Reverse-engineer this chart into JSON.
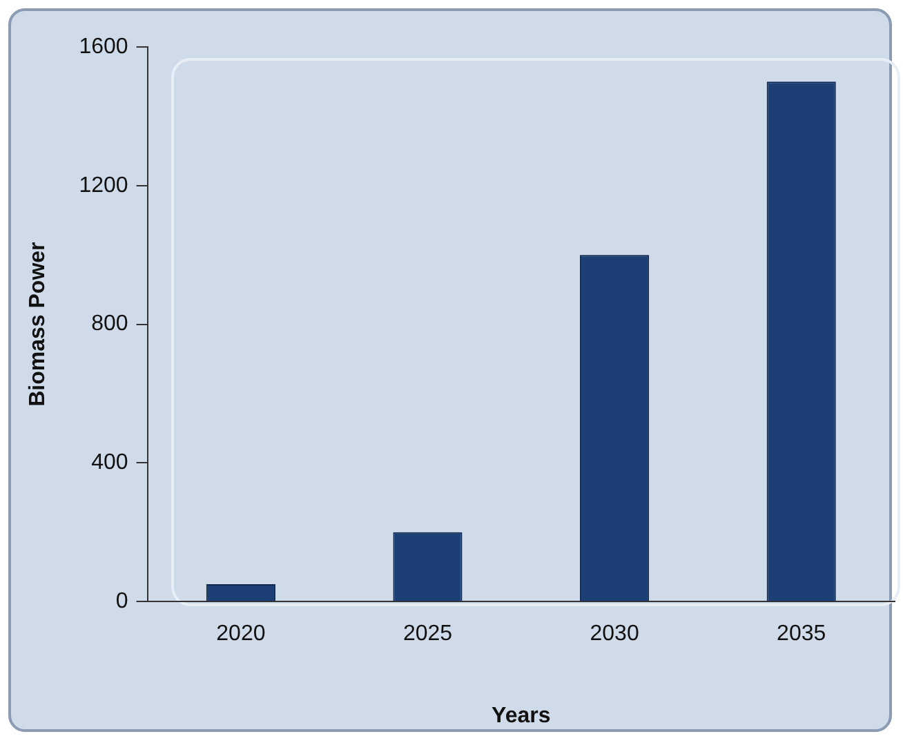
{
  "chart_data": {
    "type": "bar",
    "xlabel": "Years",
    "ylabel": "Biomass Power",
    "categories": [
      "2020",
      "2025",
      "2030",
      "2035"
    ],
    "values": [
      50,
      200,
      1000,
      1500
    ],
    "color": "#1c3f75",
    "ylim": [
      0,
      1600
    ],
    "yticks": [
      0,
      400,
      800,
      1200,
      1600
    ],
    "grid": false,
    "legend": false
  }
}
